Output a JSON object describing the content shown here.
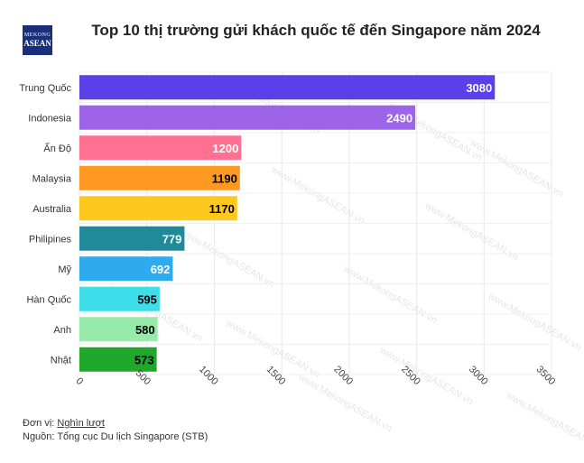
{
  "logo": {
    "line1": "MEKONG",
    "line2": "ASEAN"
  },
  "chart_data": {
    "type": "bar",
    "orientation": "horizontal",
    "title": "Top 10 thị trường gửi khách quốc tế đến Singapore năm 2024",
    "categories": [
      "Trung Quốc",
      "Indonesia",
      "Ấn Độ",
      "Malaysia",
      "Australia",
      "Philipines",
      "Mỹ",
      "Hàn Quốc",
      "Anh",
      "Nhật"
    ],
    "values": [
      3080,
      2490,
      1200,
      1190,
      1170,
      779,
      692,
      595,
      580,
      573
    ],
    "colors": [
      "#5b3fe8",
      "#9d63e8",
      "#ff7092",
      "#ff9922",
      "#ffc81f",
      "#1e8a9a",
      "#2eaaee",
      "#3dddea",
      "#98eaaa",
      "#1fa82a"
    ],
    "label_colors": [
      "#ffffff",
      "#ffffff",
      "#ffffff",
      "#000000",
      "#000000",
      "#ffffff",
      "#ffffff",
      "#000000",
      "#000000",
      "#000000"
    ],
    "xlim": [
      0,
      3500
    ],
    "xticks": [
      0,
      500,
      1000,
      1500,
      2000,
      2500,
      3000,
      3500
    ],
    "grid": true
  },
  "watermark": "www.MekongASEAN.vn",
  "footer": {
    "unit_prefix": "Đơn vị: ",
    "unit_value": "Nghìn lượt",
    "source": "Nguồn: Tổng cục Du lịch Singapore (STB)"
  }
}
